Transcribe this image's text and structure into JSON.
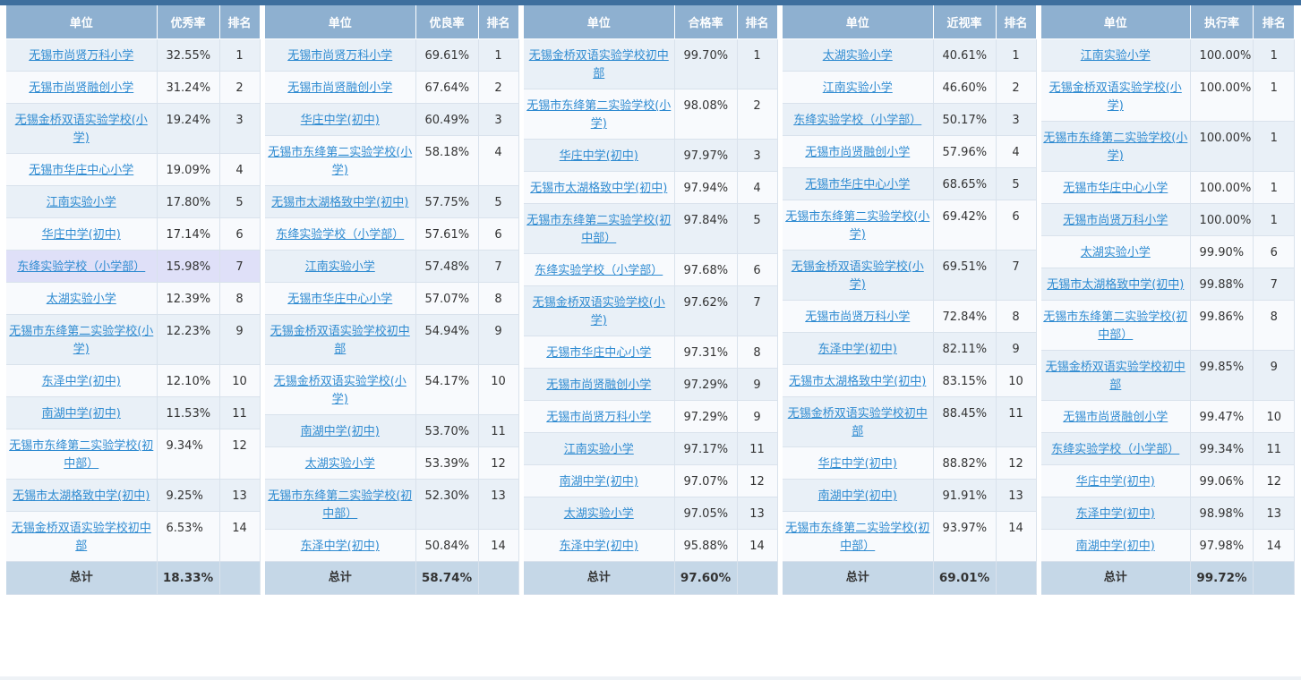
{
  "headers": {
    "unit": "单位",
    "rank": "排名",
    "total_label": "总计"
  },
  "tables": [
    {
      "metric": "优秀率",
      "total": "18.33%",
      "rows": [
        {
          "name": "无锡市尚贤万科小学",
          "value": "32.55%",
          "rank": "1"
        },
        {
          "name": "无锡市尚贤融创小学",
          "value": "31.24%",
          "rank": "2"
        },
        {
          "name": "无锡金桥双语实验学校(小学)",
          "value": "19.24%",
          "rank": "3"
        },
        {
          "name": "无锡市华庄中心小学",
          "value": "19.09%",
          "rank": "4"
        },
        {
          "name": "江南实验小学",
          "value": "17.80%",
          "rank": "5"
        },
        {
          "name": "华庄中学(初中)",
          "value": "17.14%",
          "rank": "6"
        },
        {
          "name": "东绛实验学校（小学部）",
          "value": "15.98%",
          "rank": "7"
        },
        {
          "name": "太湖实验小学",
          "value": "12.39%",
          "rank": "8"
        },
        {
          "name": "无锡市东绛第二实验学校(小学)",
          "value": "12.23%",
          "rank": "9"
        },
        {
          "name": "东泽中学(初中)",
          "value": "12.10%",
          "rank": "10"
        },
        {
          "name": "南湖中学(初中)",
          "value": "11.53%",
          "rank": "11"
        },
        {
          "name": "无锡市东绛第二实验学校(初中部）",
          "value": "9.34%",
          "rank": "12"
        },
        {
          "name": "无锡市太湖格致中学(初中)",
          "value": "9.25%",
          "rank": "13"
        },
        {
          "name": "无锡金桥双语实验学校初中部",
          "value": "6.53%",
          "rank": "14"
        }
      ]
    },
    {
      "metric": "优良率",
      "total": "58.74%",
      "rows": [
        {
          "name": "无锡市尚贤万科小学",
          "value": "69.61%",
          "rank": "1"
        },
        {
          "name": "无锡市尚贤融创小学",
          "value": "67.64%",
          "rank": "2"
        },
        {
          "name": "华庄中学(初中)",
          "value": "60.49%",
          "rank": "3"
        },
        {
          "name": "无锡市东绛第二实验学校(小学)",
          "value": "58.18%",
          "rank": "4"
        },
        {
          "name": "无锡市太湖格致中学(初中)",
          "value": "57.75%",
          "rank": "5"
        },
        {
          "name": "东绛实验学校（小学部）",
          "value": "57.61%",
          "rank": "6"
        },
        {
          "name": "江南实验小学",
          "value": "57.48%",
          "rank": "7"
        },
        {
          "name": "无锡市华庄中心小学",
          "value": "57.07%",
          "rank": "8"
        },
        {
          "name": "无锡金桥双语实验学校初中部",
          "value": "54.94%",
          "rank": "9"
        },
        {
          "name": "无锡金桥双语实验学校(小学)",
          "value": "54.17%",
          "rank": "10"
        },
        {
          "name": "南湖中学(初中)",
          "value": "53.70%",
          "rank": "11"
        },
        {
          "name": "太湖实验小学",
          "value": "53.39%",
          "rank": "12"
        },
        {
          "name": "无锡市东绛第二实验学校(初中部）",
          "value": "52.30%",
          "rank": "13"
        },
        {
          "name": "东泽中学(初中)",
          "value": "50.84%",
          "rank": "14"
        }
      ]
    },
    {
      "metric": "合格率",
      "total": "97.60%",
      "rows": [
        {
          "name": "无锡金桥双语实验学校初中部",
          "value": "99.70%",
          "rank": "1"
        },
        {
          "name": "无锡市东绛第二实验学校(小学)",
          "value": "98.08%",
          "rank": "2"
        },
        {
          "name": "华庄中学(初中)",
          "value": "97.97%",
          "rank": "3"
        },
        {
          "name": "无锡市太湖格致中学(初中)",
          "value": "97.94%",
          "rank": "4"
        },
        {
          "name": "无锡市东绛第二实验学校(初中部）",
          "value": "97.84%",
          "rank": "5"
        },
        {
          "name": "东绛实验学校（小学部）",
          "value": "97.68%",
          "rank": "6"
        },
        {
          "name": "无锡金桥双语实验学校(小学)",
          "value": "97.62%",
          "rank": "7"
        },
        {
          "name": "无锡市华庄中心小学",
          "value": "97.31%",
          "rank": "8"
        },
        {
          "name": "无锡市尚贤融创小学",
          "value": "97.29%",
          "rank": "9"
        },
        {
          "name": "无锡市尚贤万科小学",
          "value": "97.29%",
          "rank": "9"
        },
        {
          "name": "江南实验小学",
          "value": "97.17%",
          "rank": "11"
        },
        {
          "name": "南湖中学(初中)",
          "value": "97.07%",
          "rank": "12"
        },
        {
          "name": "太湖实验小学",
          "value": "97.05%",
          "rank": "13"
        },
        {
          "name": "东泽中学(初中)",
          "value": "95.88%",
          "rank": "14"
        }
      ]
    },
    {
      "metric": "近视率",
      "total": "69.01%",
      "rows": [
        {
          "name": "太湖实验小学",
          "value": "40.61%",
          "rank": "1"
        },
        {
          "name": "江南实验小学",
          "value": "46.60%",
          "rank": "2"
        },
        {
          "name": "东绛实验学校（小学部）",
          "value": "50.17%",
          "rank": "3"
        },
        {
          "name": "无锡市尚贤融创小学",
          "value": "57.96%",
          "rank": "4"
        },
        {
          "name": "无锡市华庄中心小学",
          "value": "68.65%",
          "rank": "5"
        },
        {
          "name": "无锡市东绛第二实验学校(小学)",
          "value": "69.42%",
          "rank": "6"
        },
        {
          "name": "无锡金桥双语实验学校(小学)",
          "value": "69.51%",
          "rank": "7"
        },
        {
          "name": "无锡市尚贤万科小学",
          "value": "72.84%",
          "rank": "8"
        },
        {
          "name": "东泽中学(初中)",
          "value": "82.11%",
          "rank": "9"
        },
        {
          "name": "无锡市太湖格致中学(初中)",
          "value": "83.15%",
          "rank": "10"
        },
        {
          "name": "无锡金桥双语实验学校初中部",
          "value": "88.45%",
          "rank": "11"
        },
        {
          "name": "华庄中学(初中)",
          "value": "88.82%",
          "rank": "12"
        },
        {
          "name": "南湖中学(初中)",
          "value": "91.91%",
          "rank": "13"
        },
        {
          "name": "无锡市东绛第二实验学校(初中部）",
          "value": "93.97%",
          "rank": "14"
        }
      ]
    },
    {
      "metric": "执行率",
      "total": "99.72%",
      "rows": [
        {
          "name": "江南实验小学",
          "value": "100.00%",
          "rank": "1"
        },
        {
          "name": "无锡金桥双语实验学校(小学)",
          "value": "100.00%",
          "rank": "1"
        },
        {
          "name": "无锡市东绛第二实验学校(小学)",
          "value": "100.00%",
          "rank": "1"
        },
        {
          "name": "无锡市华庄中心小学",
          "value": "100.00%",
          "rank": "1"
        },
        {
          "name": "无锡市尚贤万科小学",
          "value": "100.00%",
          "rank": "1"
        },
        {
          "name": "太湖实验小学",
          "value": "99.90%",
          "rank": "6"
        },
        {
          "name": "无锡市太湖格致中学(初中)",
          "value": "99.88%",
          "rank": "7"
        },
        {
          "name": "无锡市东绛第二实验学校(初中部）",
          "value": "99.86%",
          "rank": "8"
        },
        {
          "name": "无锡金桥双语实验学校初中部",
          "value": "99.85%",
          "rank": "9"
        },
        {
          "name": "无锡市尚贤融创小学",
          "value": "99.47%",
          "rank": "10"
        },
        {
          "name": "东绛实验学校（小学部）",
          "value": "99.34%",
          "rank": "11"
        },
        {
          "name": "华庄中学(初中)",
          "value": "99.06%",
          "rank": "12"
        },
        {
          "name": "东泽中学(初中)",
          "value": "98.98%",
          "rank": "13"
        },
        {
          "name": "南湖中学(初中)",
          "value": "97.98%",
          "rank": "14"
        }
      ]
    }
  ],
  "highlight": {
    "table": 0,
    "row": 6
  }
}
